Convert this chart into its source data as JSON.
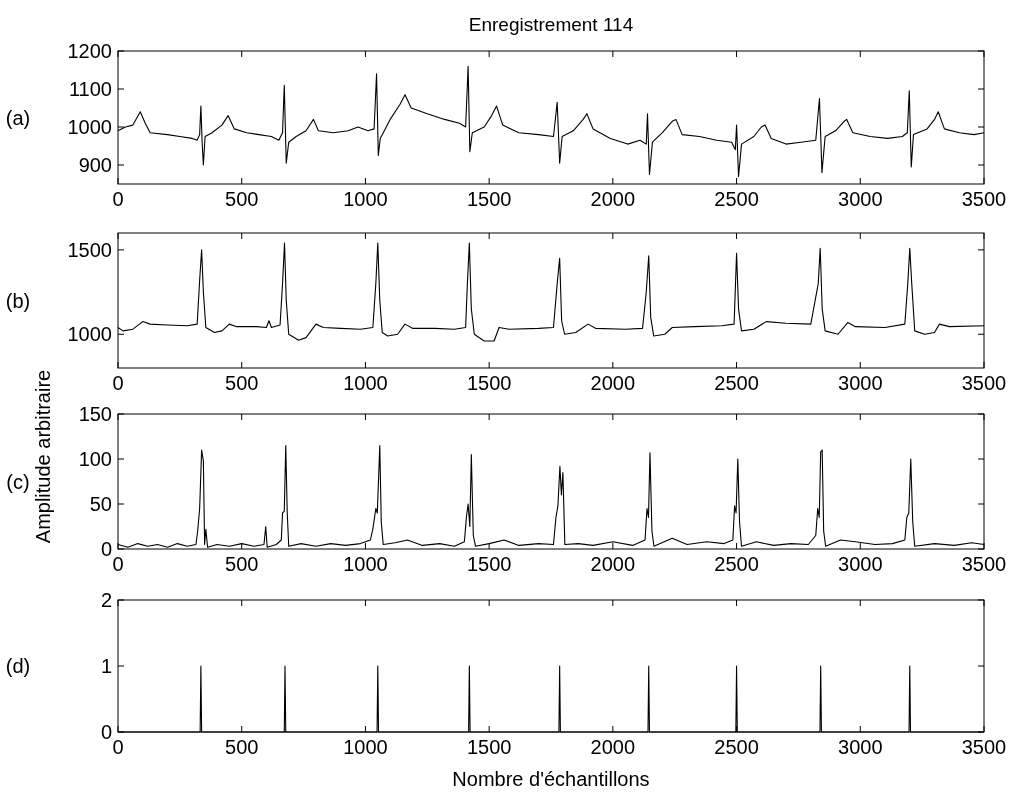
{
  "chart_data": [
    {
      "type": "line",
      "title": "Enregistrement 114",
      "annotations": [
        "(a)"
      ],
      "xlim": [
        0,
        3500
      ],
      "xticks": [
        0,
        500,
        1000,
        1500,
        2000,
        2500,
        3000,
        3500
      ],
      "ylim": [
        850,
        1200
      ],
      "yticks": [
        900,
        1000,
        1100,
        1200
      ],
      "color": "#000000",
      "x": [
        0,
        30,
        60,
        90,
        110,
        130,
        200,
        250,
        300,
        320,
        330,
        335,
        340,
        345,
        352,
        380,
        420,
        445,
        470,
        520,
        570,
        620,
        650,
        665,
        672,
        680,
        690,
        720,
        760,
        790,
        810,
        870,
        930,
        970,
        1010,
        1035,
        1045,
        1052,
        1060,
        1100,
        1140,
        1160,
        1185,
        1250,
        1320,
        1380,
        1405,
        1415,
        1422,
        1432,
        1480,
        1510,
        1530,
        1555,
        1620,
        1700,
        1760,
        1775,
        1785,
        1795,
        1840,
        1880,
        1895,
        1920,
        1990,
        2060,
        2110,
        2135,
        2140,
        2148,
        2160,
        2200,
        2240,
        2255,
        2280,
        2350,
        2420,
        2480,
        2495,
        2500,
        2508,
        2520,
        2570,
        2600,
        2615,
        2640,
        2700,
        2760,
        2820,
        2835,
        2845,
        2858,
        2900,
        2935,
        2945,
        2970,
        3040,
        3110,
        3170,
        3190,
        3198,
        3206,
        3215,
        3270,
        3300,
        3315,
        3340,
        3400,
        3460,
        3500
      ],
      "values": [
        990,
        1000,
        1005,
        1040,
        1010,
        985,
        980,
        975,
        970,
        965,
        980,
        1055,
        960,
        900,
        975,
        985,
        1005,
        1030,
        995,
        985,
        980,
        975,
        965,
        985,
        1110,
        905,
        960,
        975,
        990,
        1020,
        990,
        985,
        990,
        1000,
        990,
        995,
        1140,
        925,
        970,
        1020,
        1060,
        1085,
        1050,
        1035,
        1020,
        1010,
        1000,
        1160,
        935,
        985,
        1000,
        1030,
        1055,
        1005,
        985,
        980,
        975,
        1065,
        905,
        975,
        990,
        1020,
        1035,
        995,
        970,
        955,
        965,
        955,
        1035,
        875,
        960,
        985,
        1015,
        1020,
        980,
        975,
        965,
        960,
        940,
        1005,
        870,
        955,
        975,
        1000,
        1005,
        970,
        955,
        960,
        965,
        1075,
        880,
        975,
        990,
        1015,
        1020,
        985,
        975,
        970,
        975,
        985,
        1095,
        895,
        980,
        995,
        1020,
        1040,
        995,
        985,
        980,
        985
      ]
    },
    {
      "type": "line",
      "annotations": [
        "(b)"
      ],
      "xlim": [
        0,
        3500
      ],
      "xticks": [
        0,
        500,
        1000,
        1500,
        2000,
        2500,
        3000,
        3500
      ],
      "ylim": [
        800,
        1600
      ],
      "yticks": [
        1000,
        1500
      ],
      "color": "#000000",
      "x": [
        0,
        20,
        60,
        100,
        130,
        200,
        280,
        320,
        330,
        338,
        345,
        355,
        390,
        420,
        450,
        480,
        560,
        600,
        610,
        620,
        655,
        665,
        673,
        680,
        690,
        730,
        760,
        800,
        830,
        900,
        980,
        1030,
        1042,
        1050,
        1058,
        1068,
        1090,
        1130,
        1160,
        1190,
        1280,
        1360,
        1405,
        1412,
        1420,
        1428,
        1440,
        1480,
        1520,
        1540,
        1580,
        1700,
        1760,
        1775,
        1785,
        1793,
        1805,
        1850,
        1900,
        1930,
        2050,
        2120,
        2135,
        2145,
        2153,
        2165,
        2210,
        2240,
        2330,
        2440,
        2490,
        2500,
        2508,
        2520,
        2570,
        2620,
        2700,
        2800,
        2830,
        2838,
        2846,
        2858,
        2910,
        2950,
        2980,
        3100,
        3180,
        3192,
        3200,
        3208,
        3220,
        3260,
        3300,
        3320,
        3360,
        3500
      ],
      "values": [
        1040,
        1020,
        1030,
        1075,
        1060,
        1055,
        1050,
        1060,
        1320,
        1500,
        1250,
        1040,
        1010,
        1020,
        1060,
        1045,
        1045,
        1040,
        1080,
        1040,
        1055,
        1300,
        1540,
        1200,
        1000,
        965,
        980,
        1060,
        1040,
        1035,
        1030,
        1040,
        1300,
        1540,
        1200,
        1010,
        990,
        1000,
        1060,
        1035,
        1035,
        1030,
        1040,
        1300,
        1540,
        1150,
        1000,
        960,
        960,
        1040,
        1030,
        1035,
        1040,
        1300,
        1450,
        1080,
        1000,
        1010,
        1060,
        1035,
        1030,
        1035,
        1250,
        1465,
        1100,
        990,
        1000,
        1040,
        1045,
        1050,
        1060,
        1480,
        1150,
        1020,
        1030,
        1075,
        1065,
        1060,
        1300,
        1510,
        1150,
        1020,
        1000,
        1070,
        1045,
        1040,
        1060,
        1300,
        1510,
        1300,
        1020,
        1000,
        1010,
        1060,
        1045,
        1050
      ]
    },
    {
      "type": "line",
      "annotations": [
        "(c)"
      ],
      "ylabel": "Amplitude arbitraire",
      "xlim": [
        0,
        3500
      ],
      "xticks": [
        0,
        500,
        1000,
        1500,
        2000,
        2500,
        3000,
        3500
      ],
      "ylim": [
        0,
        150
      ],
      "yticks": [
        0,
        50,
        100,
        150
      ],
      "color": "#000000",
      "x": [
        0,
        40,
        80,
        120,
        160,
        200,
        240,
        280,
        315,
        322,
        330,
        338,
        345,
        350,
        355,
        362,
        400,
        450,
        500,
        550,
        590,
        597,
        603,
        640,
        660,
        665,
        672,
        678,
        684,
        690,
        740,
        800,
        860,
        920,
        980,
        1020,
        1030,
        1042,
        1048,
        1058,
        1064,
        1072,
        1120,
        1170,
        1230,
        1300,
        1360,
        1400,
        1408,
        1415,
        1422,
        1428,
        1436,
        1445,
        1500,
        1560,
        1620,
        1700,
        1760,
        1770,
        1778,
        1786,
        1792,
        1798,
        1806,
        1860,
        1920,
        2000,
        2080,
        2130,
        2138,
        2144,
        2150,
        2158,
        2166,
        2240,
        2300,
        2380,
        2450,
        2485,
        2492,
        2498,
        2505,
        2512,
        2520,
        2580,
        2650,
        2720,
        2790,
        2820,
        2828,
        2834,
        2840,
        2846,
        2852,
        2860,
        2920,
        2980,
        3060,
        3130,
        3180,
        3188,
        3196,
        3204,
        3212,
        3220,
        3300,
        3380,
        3450,
        3500
      ],
      "values": [
        5,
        2,
        6,
        3,
        5,
        2,
        6,
        3,
        5,
        20,
        45,
        110,
        98,
        5,
        22,
        2,
        5,
        3,
        6,
        3,
        5,
        25,
        2,
        5,
        10,
        40,
        42,
        115,
        40,
        3,
        6,
        3,
        6,
        4,
        6,
        10,
        22,
        45,
        40,
        115,
        30,
        5,
        7,
        10,
        4,
        6,
        3,
        8,
        35,
        50,
        25,
        105,
        15,
        3,
        6,
        10,
        4,
        6,
        5,
        35,
        48,
        92,
        60,
        85,
        5,
        6,
        4,
        8,
        4,
        10,
        45,
        35,
        107,
        20,
        3,
        12,
        5,
        8,
        6,
        10,
        48,
        40,
        100,
        30,
        3,
        8,
        4,
        6,
        5,
        15,
        45,
        35,
        108,
        110,
        20,
        3,
        10,
        8,
        5,
        6,
        10,
        35,
        40,
        100,
        30,
        3,
        6,
        4,
        7,
        5
      ]
    },
    {
      "type": "line",
      "annotations": [
        "(d)"
      ],
      "xlabel": "Nombre d'échantillons",
      "xlim": [
        0,
        3500
      ],
      "xticks": [
        0,
        500,
        1000,
        1500,
        2000,
        2500,
        3000,
        3500
      ],
      "ylim": [
        0,
        2
      ],
      "yticks": [
        0,
        1,
        2
      ],
      "color": "#000000",
      "x": [
        0,
        332,
        335,
        338,
        672,
        675,
        678,
        1047,
        1050,
        1053,
        1417,
        1420,
        1423,
        1782,
        1785,
        1788,
        2142,
        2145,
        2148,
        2497,
        2500,
        2503,
        2837,
        2840,
        2843,
        3197,
        3200,
        3203,
        3500
      ],
      "values": [
        0,
        0,
        1,
        0,
        0,
        1,
        0,
        0,
        1,
        0,
        0,
        1,
        0,
        0,
        1,
        0,
        0,
        1,
        0,
        0,
        1,
        0,
        0,
        1,
        0,
        0,
        1,
        0,
        0
      ]
    }
  ]
}
